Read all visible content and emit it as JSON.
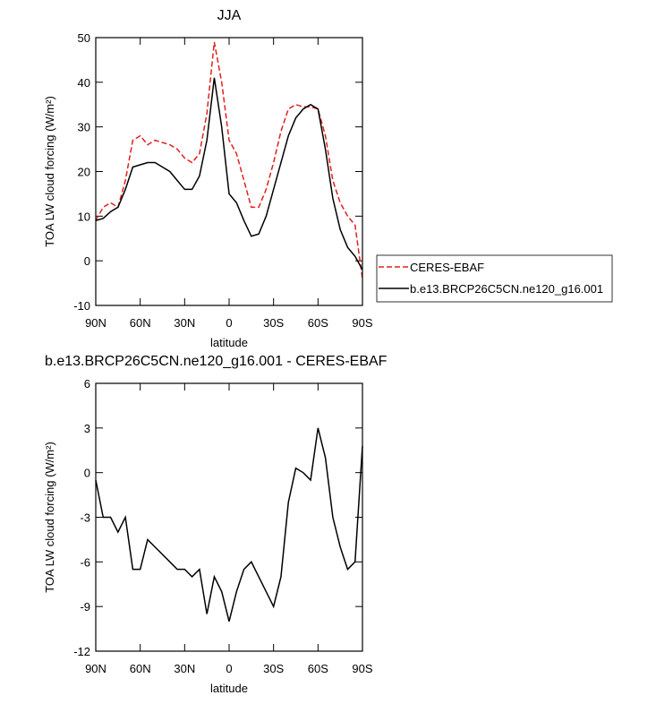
{
  "chart_data": [
    {
      "type": "line",
      "title": "JJA",
      "xlabel": "latitude",
      "ylabel": "TOA LW cloud forcing (W/m²)",
      "x": [
        90,
        85,
        80,
        75,
        70,
        65,
        60,
        55,
        50,
        45,
        40,
        35,
        30,
        25,
        20,
        15,
        10,
        5,
        0,
        -5,
        -10,
        -15,
        -20,
        -25,
        -30,
        -35,
        -40,
        -45,
        -50,
        -55,
        -60,
        -65,
        -70,
        -75,
        -80,
        -85,
        -90
      ],
      "xlim": [
        90,
        -90
      ],
      "xticks": [
        {
          "value": 90,
          "label": "90N"
        },
        {
          "value": 60,
          "label": "60N"
        },
        {
          "value": 30,
          "label": "30N"
        },
        0,
        {
          "value": -30,
          "label": "30S"
        },
        {
          "value": -60,
          "label": "60S"
        },
        {
          "value": -90,
          "label": "90S"
        }
      ],
      "ylim": [
        -10,
        50
      ],
      "yticks": [
        -10,
        0,
        10,
        20,
        30,
        40,
        50
      ],
      "legend": "right",
      "series": [
        {
          "name": "CERES-EBAF",
          "color": "#e0201c",
          "line_style": "dashed",
          "values": [
            9,
            12,
            13,
            12,
            18,
            27,
            28,
            26,
            27,
            26.5,
            26,
            25,
            23,
            22,
            24,
            33,
            49,
            40,
            27,
            24,
            18,
            12,
            12,
            16,
            22,
            29,
            34,
            35,
            34.5,
            34.5,
            34,
            28,
            18,
            13,
            10,
            8,
            -4
          ]
        },
        {
          "name": "b.e13.BRCP26C5CN.ne120_g16.001",
          "color": "#000000",
          "line_style": "solid",
          "values": [
            9,
            9.5,
            11,
            12,
            16,
            21,
            21.5,
            22,
            22,
            21,
            20,
            18,
            16,
            16,
            19,
            27,
            41,
            30,
            15,
            13,
            9,
            5.5,
            6,
            10,
            16,
            22,
            28,
            32,
            34,
            35,
            34,
            25,
            14,
            7,
            3,
            1,
            -2
          ]
        }
      ]
    },
    {
      "type": "line",
      "title": "b.e13.BRCP26C5CN.ne120_g16.001 - CERES-EBAF",
      "xlabel": "latitude",
      "ylabel": "TOA LW cloud forcing (W/m²)",
      "x": [
        90,
        85,
        80,
        75,
        70,
        65,
        60,
        55,
        50,
        45,
        40,
        35,
        30,
        25,
        20,
        15,
        10,
        5,
        0,
        -5,
        -10,
        -15,
        -20,
        -25,
        -30,
        -35,
        -40,
        -45,
        -50,
        -55,
        -60,
        -65,
        -70,
        -75,
        -80,
        -85,
        -90
      ],
      "xlim": [
        90,
        -90
      ],
      "xticks": [
        {
          "value": 90,
          "label": "90N"
        },
        {
          "value": 60,
          "label": "60N"
        },
        {
          "value": 30,
          "label": "30N"
        },
        0,
        {
          "value": -30,
          "label": "30S"
        },
        {
          "value": -60,
          "label": "60S"
        },
        {
          "value": -90,
          "label": "90S"
        }
      ],
      "ylim": [
        -12,
        6
      ],
      "yticks": [
        -12,
        -9,
        -6,
        -3,
        0,
        3,
        6
      ],
      "series": [
        {
          "color": "#000000",
          "line_style": "solid",
          "values": [
            -0.5,
            -3,
            -3,
            -4,
            -3,
            -6.5,
            -6.5,
            -4.5,
            -5,
            -5.5,
            -6,
            -6.5,
            -6.5,
            -7,
            -6.5,
            -9.5,
            -7,
            -8,
            -10,
            -8,
            -6.5,
            -6,
            -7,
            -8,
            -9,
            -7,
            -2,
            0.3,
            0,
            -0.5,
            3,
            1,
            -3,
            -5,
            -6.5,
            -6,
            1.8
          ]
        }
      ]
    }
  ]
}
